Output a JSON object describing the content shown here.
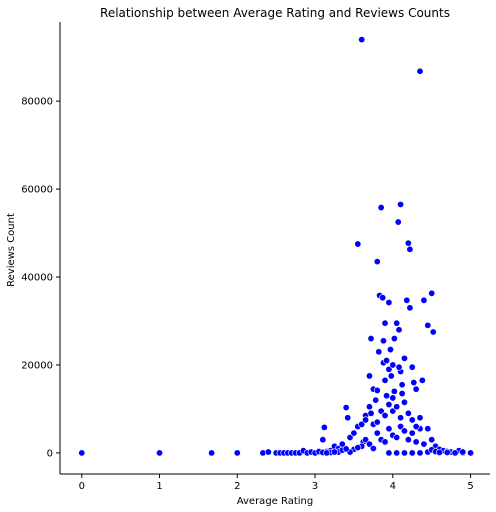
{
  "chart_data": {
    "type": "scatter",
    "title": "Relationship between Average Rating and Reviews Counts",
    "xlabel": "Average Rating",
    "ylabel": "Reviews Count",
    "xlim": [
      -0.28,
      5.25
    ],
    "ylim": [
      -4800,
      98000
    ],
    "xticks": [
      0,
      1,
      2,
      3,
      4,
      5
    ],
    "yticks": [
      0,
      20000,
      40000,
      60000,
      80000
    ],
    "grid": false,
    "point_color": "#0000ff",
    "points": [
      [
        0,
        0
      ],
      [
        1,
        0
      ],
      [
        1.67,
        0
      ],
      [
        2,
        0
      ],
      [
        2.33,
        0
      ],
      [
        2.4,
        200
      ],
      [
        2.5,
        0
      ],
      [
        2.55,
        0
      ],
      [
        2.6,
        0
      ],
      [
        2.65,
        0
      ],
      [
        2.7,
        0
      ],
      [
        2.75,
        0
      ],
      [
        2.8,
        0
      ],
      [
        2.85,
        500
      ],
      [
        2.9,
        0
      ],
      [
        2.95,
        200
      ],
      [
        3.0,
        0
      ],
      [
        3.05,
        300
      ],
      [
        3.1,
        3000
      ],
      [
        3.12,
        5800
      ],
      [
        3.15,
        300
      ],
      [
        3.2,
        500
      ],
      [
        3.25,
        1500
      ],
      [
        3.3,
        1000
      ],
      [
        3.35,
        2000
      ],
      [
        3.4,
        10300
      ],
      [
        3.42,
        8000
      ],
      [
        3.45,
        3500
      ],
      [
        3.5,
        4500
      ],
      [
        3.55,
        47500
      ],
      [
        3.55,
        6000
      ],
      [
        3.6,
        94000
      ],
      [
        3.6,
        6500
      ],
      [
        3.62,
        2500
      ],
      [
        3.65,
        8500
      ],
      [
        3.7,
        17500
      ],
      [
        3.7,
        10500
      ],
      [
        3.72,
        26000
      ],
      [
        3.75,
        14500
      ],
      [
        3.75,
        6500
      ],
      [
        3.78,
        12000
      ],
      [
        3.8,
        43500
      ],
      [
        3.8,
        14200
      ],
      [
        3.82,
        23000
      ],
      [
        3.83,
        35800
      ],
      [
        3.85,
        55800
      ],
      [
        3.87,
        35300
      ],
      [
        3.88,
        25500
      ],
      [
        3.88,
        20500
      ],
      [
        3.9,
        29500
      ],
      [
        3.9,
        16500
      ],
      [
        3.92,
        21000
      ],
      [
        3.95,
        34200
      ],
      [
        3.95,
        19000
      ],
      [
        3.97,
        23500
      ],
      [
        4.0,
        20000
      ],
      [
        4.0,
        12500
      ],
      [
        4.02,
        26000
      ],
      [
        4.05,
        29500
      ],
      [
        4.07,
        52500
      ],
      [
        4.08,
        28000
      ],
      [
        4.1,
        56500
      ],
      [
        4.1,
        18500
      ],
      [
        4.12,
        15500
      ],
      [
        4.15,
        21500
      ],
      [
        4.18,
        34700
      ],
      [
        4.2,
        47700
      ],
      [
        4.22,
        46300
      ],
      [
        4.22,
        33000
      ],
      [
        4.25,
        19500
      ],
      [
        4.27,
        16000
      ],
      [
        4.3,
        14500
      ],
      [
        4.35,
        86800
      ],
      [
        4.38,
        16500
      ],
      [
        4.4,
        34700
      ],
      [
        4.45,
        29000
      ],
      [
        4.5,
        36300
      ],
      [
        4.52,
        27500
      ],
      [
        4.45,
        5500
      ],
      [
        4.5,
        3000
      ],
      [
        4.55,
        1500
      ],
      [
        4.6,
        800
      ],
      [
        4.65,
        500
      ],
      [
        4.7,
        300
      ],
      [
        4.75,
        200
      ],
      [
        4.8,
        100
      ],
      [
        4.85,
        500
      ],
      [
        4.9,
        0
      ],
      [
        5.0,
        0
      ],
      [
        3.6,
        1500
      ],
      [
        3.65,
        3000
      ],
      [
        3.7,
        2000
      ],
      [
        3.75,
        1000
      ],
      [
        3.8,
        4500
      ],
      [
        3.85,
        3000
      ],
      [
        3.9,
        2500
      ],
      [
        3.95,
        5500
      ],
      [
        4.0,
        4000
      ],
      [
        4.05,
        3500
      ],
      [
        4.1,
        6000
      ],
      [
        4.15,
        5000
      ],
      [
        4.2,
        3000
      ],
      [
        4.25,
        4500
      ],
      [
        4.3,
        2500
      ],
      [
        4.35,
        5500
      ],
      [
        4.4,
        2000
      ],
      [
        3.65,
        7500
      ],
      [
        3.72,
        9000
      ],
      [
        3.8,
        7000
      ],
      [
        3.85,
        9500
      ],
      [
        3.9,
        8500
      ],
      [
        3.95,
        11000
      ],
      [
        4.0,
        9500
      ],
      [
        4.05,
        10500
      ],
      [
        4.1,
        8000
      ],
      [
        4.15,
        11500
      ],
      [
        4.2,
        9000
      ],
      [
        4.25,
        7500
      ],
      [
        4.3,
        6000
      ],
      [
        4.35,
        8000
      ],
      [
        3.92,
        13000
      ],
      [
        4.02,
        14000
      ],
      [
        4.12,
        13500
      ],
      [
        3.98,
        17500
      ],
      [
        4.08,
        19500
      ],
      [
        3.5,
        800
      ],
      [
        3.45,
        200
      ],
      [
        3.55,
        1200
      ],
      [
        3.3,
        200
      ],
      [
        3.35,
        600
      ],
      [
        3.4,
        900
      ],
      [
        3.2,
        100
      ],
      [
        3.25,
        200
      ],
      [
        3.1,
        100
      ],
      [
        3.15,
        0
      ],
      [
        4.45,
        200
      ],
      [
        4.5,
        700
      ],
      [
        4.55,
        300
      ],
      [
        4.6,
        100
      ],
      [
        4.7,
        100
      ],
      [
        4.8,
        0
      ],
      [
        4.9,
        200
      ],
      [
        3.95,
        0
      ],
      [
        4.05,
        0
      ],
      [
        4.15,
        0
      ],
      [
        4.25,
        0
      ],
      [
        4.35,
        0
      ]
    ]
  }
}
